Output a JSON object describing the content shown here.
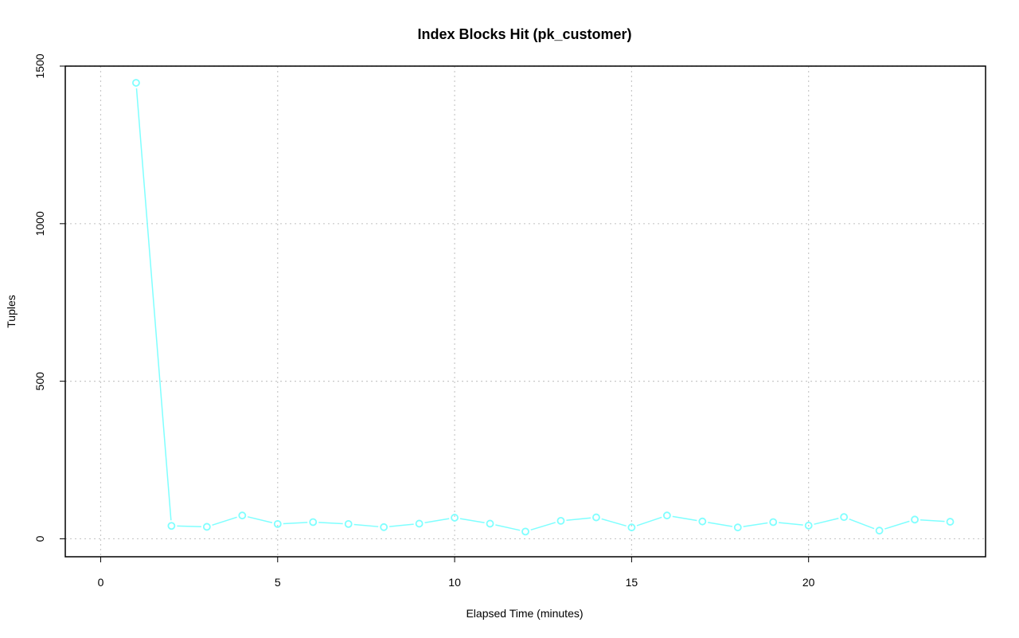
{
  "chart_data": {
    "type": "line",
    "title": "Index Blocks Hit (pk_customer)",
    "xlabel": "Elapsed Time (minutes)",
    "ylabel": "Tuples",
    "xlim": [
      -1,
      25
    ],
    "ylim": [
      -57,
      1500
    ],
    "x_ticks": [
      0,
      5,
      10,
      15,
      20
    ],
    "y_ticks": [
      0,
      500,
      1000,
      1500
    ],
    "grid": true,
    "colors": {
      "series": "#7fffff",
      "axes": "#000000",
      "grid": "#c8c8c8"
    },
    "series": [
      {
        "x": [
          1,
          2,
          3,
          4,
          5,
          6,
          7,
          8,
          9,
          10,
          11,
          12,
          13,
          14,
          15,
          16,
          17,
          18,
          19,
          20,
          21,
          22,
          23,
          24
        ],
        "values": [
          1447,
          41,
          38,
          74,
          47,
          53,
          47,
          37,
          48,
          67,
          48,
          23,
          57,
          68,
          36,
          74,
          55,
          36,
          53,
          42,
          69,
          26,
          61,
          54
        ]
      }
    ]
  }
}
